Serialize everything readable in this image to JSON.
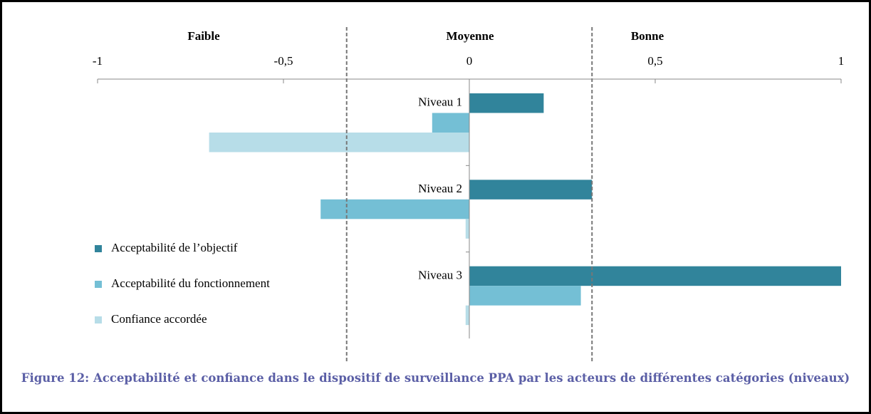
{
  "chart_data": {
    "type": "barh",
    "title": "Figure 12: Acceptabilité et confiance dans le dispositif de surveillance PPA par les acteurs de différentes catégories (niveaux)",
    "zones": [
      "Faible",
      "Moyenne",
      "Bonne"
    ],
    "dividers": [
      -0.33,
      0.33
    ],
    "categories": [
      "Niveau 1",
      "Niveau 2",
      "Niveau 3"
    ],
    "series": [
      {
        "name": "Acceptabilité de l’objectif",
        "color": "#31849b",
        "values": [
          0.2,
          0.33,
          1
        ]
      },
      {
        "name": "Acceptabilité du fonctionnement",
        "color": "#74bfd5",
        "values": [
          -0.1,
          -0.4,
          0.3
        ]
      },
      {
        "name": "Confiance accordée",
        "color": "#b7dde8",
        "values": [
          -0.7,
          -0.01,
          -0.01
        ]
      }
    ],
    "xlim": [
      -1,
      1
    ],
    "xticks": [
      -1,
      {
        "value": -0.5,
        "label": "-0,5"
      },
      0,
      {
        "value": 0.5,
        "label": "0,5"
      },
      1
    ]
  }
}
